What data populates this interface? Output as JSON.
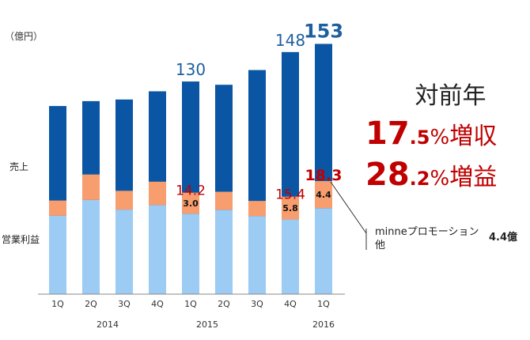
{
  "chart_data": {
    "type": "bar",
    "unit_label": "（億円）",
    "row_labels": {
      "sales": "売上",
      "profit": "営業利益"
    },
    "categories": [
      "1Q",
      "2Q",
      "3Q",
      "4Q",
      "1Q",
      "2Q",
      "3Q",
      "4Q",
      "1Q"
    ],
    "year_labels": [
      {
        "label": "2014",
        "center_index": 1.5
      },
      {
        "label": "2015",
        "center_index": 4.5
      },
      {
        "label": "2016",
        "center_index": 8
      }
    ],
    "series": [
      {
        "name": "売上",
        "values": [
          115,
          118,
          119,
          124,
          130,
          128,
          137,
          148,
          153
        ],
        "color": "#0b56a4"
      },
      {
        "name": "営業利益",
        "values": [
          10.3,
          17.2,
          12.7,
          15.8,
          14.2,
          12.2,
          10.3,
          15.4,
          18.3
        ],
        "color": "#f79d6e"
      },
      {
        "name": "minneプロモーション他",
        "values": [
          0,
          0,
          0,
          0,
          3.0,
          0,
          0,
          5.8,
          4.4
        ],
        "color": "#f79d6e"
      }
    ],
    "profit_base": [
      16.2,
      23.9,
      19.2,
      21.4,
      17.2,
      19.1,
      16.0,
      14.4,
      19.9
    ],
    "sales_labels": [
      null,
      null,
      null,
      null,
      "130",
      null,
      null,
      "148",
      "153"
    ],
    "profit_labels": [
      null,
      null,
      null,
      null,
      "14.2",
      null,
      null,
      "15.4",
      "18.3"
    ],
    "promo_labels": [
      null,
      null,
      null,
      null,
      "3.0",
      null,
      null,
      "5.8",
      "4.4"
    ],
    "ylim": [
      0,
      160
    ]
  },
  "summary": {
    "heading": "対前年",
    "sales_growth": {
      "int": "17",
      "dec": ".5",
      "pct": "%",
      "word": "増収"
    },
    "profit_growth": {
      "int": "28",
      "dec": ".2",
      "pct": "%",
      "word": "増益"
    }
  },
  "callout": {
    "label": "minneプロモーション他",
    "value": "4.4億"
  },
  "colors": {
    "sales": "#0b56a4",
    "profit": "#f79d6e",
    "base": "#9ccbf4",
    "accent": "#c00000",
    "label_blue": "#1f5f9e"
  }
}
